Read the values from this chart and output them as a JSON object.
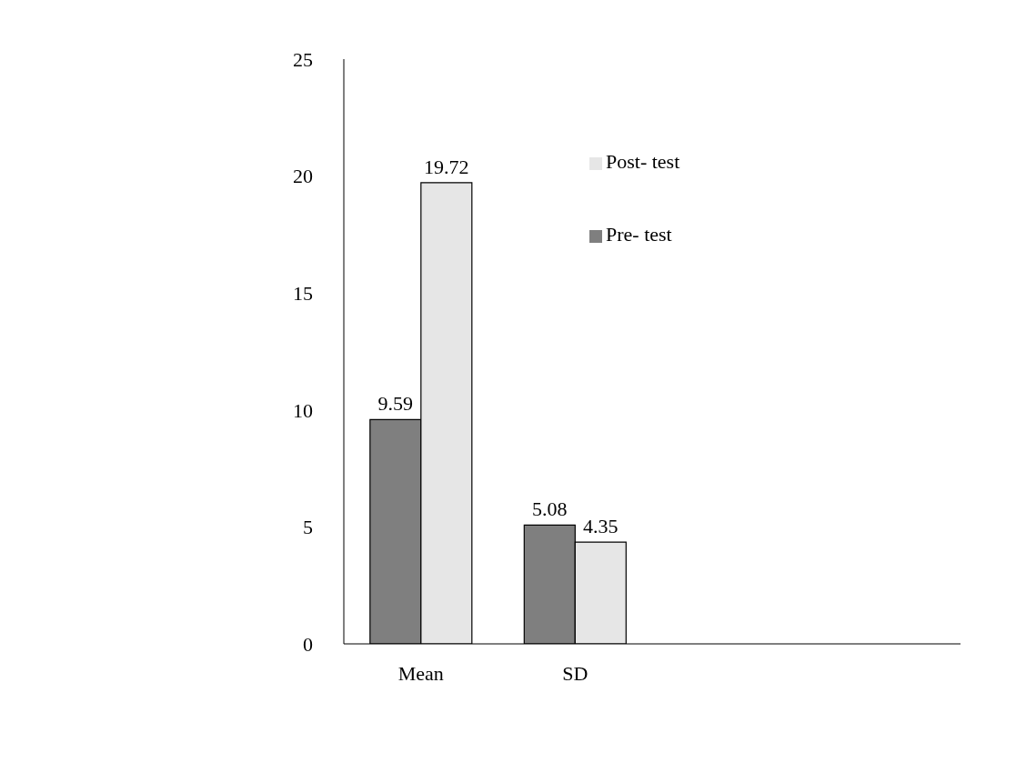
{
  "chart_data": {
    "type": "bar",
    "categories": [
      "Mean",
      "SD",
      null,
      null
    ],
    "series": [
      {
        "name": "Pre- test",
        "color": "#7f7f7f",
        "values": [
          9.59,
          5.08,
          null,
          null
        ]
      },
      {
        "name": "Post- test",
        "color": "#e6e6e6",
        "values": [
          19.72,
          4.35,
          null,
          null
        ]
      }
    ],
    "ylim": [
      0,
      25
    ],
    "yticks": [
      0,
      5,
      10,
      15,
      20,
      25
    ],
    "grid": false,
    "legend": "top right",
    "data_labels": true
  }
}
